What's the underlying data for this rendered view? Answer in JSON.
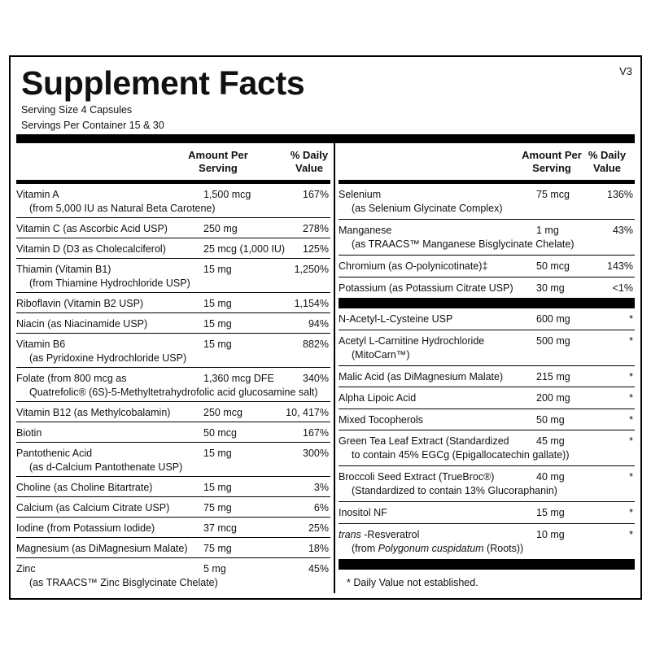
{
  "header": {
    "title": "Supplement Facts",
    "version": "V3",
    "serving_size": "Serving Size  4 Capsules",
    "servings_per_container": "Servings Per Container  15 & 30"
  },
  "columns": {
    "amount": [
      "Amount Per",
      "Serving"
    ],
    "daily_value": [
      "% Daily",
      "Value"
    ]
  },
  "left_rows": [
    {
      "name": [
        "Vitamin A",
        "(from 5,000 IU as Natural Beta Carotene)"
      ],
      "amount": "1,500 mcg",
      "dv": "167%"
    },
    {
      "name": [
        "Vitamin C (as Ascorbic Acid USP)"
      ],
      "amount": "250 mg",
      "dv": "278%"
    },
    {
      "name": [
        "Vitamin D (D3 as Cholecalciferol)"
      ],
      "amount": "25 mcg (1,000 IU)",
      "dv": "125%"
    },
    {
      "name": [
        "Thiamin (Vitamin B1)",
        "(from Thiamine Hydrochloride USP)"
      ],
      "amount": "15 mg",
      "dv": "1,250%"
    },
    {
      "name": [
        "Riboflavin (Vitamin B2 USP)"
      ],
      "amount": "15 mg",
      "dv": "1,154%"
    },
    {
      "name": [
        "Niacin (as Niacinamide USP)"
      ],
      "amount": "15 mg",
      "dv": "94%"
    },
    {
      "name": [
        "Vitamin B6",
        "(as Pyridoxine Hydrochloride USP)"
      ],
      "amount": "15 mg",
      "dv": "882%"
    },
    {
      "name": [
        "Folate (from 800 mcg as",
        "Quatrefolic® (6S)-5-Methyltetrahydrofolic acid glucosamine salt)"
      ],
      "amount": "1,360 mcg DFE",
      "dv": "340%"
    },
    {
      "name": [
        "Vitamin B12 (as Methylcobalamin)"
      ],
      "amount": "250 mcg",
      "dv": "10, 417%"
    },
    {
      "name": [
        "Biotin"
      ],
      "amount": "50 mcg",
      "dv": "167%"
    },
    {
      "name": [
        "Pantothenic Acid",
        "(as d-Calcium Pantothenate USP)"
      ],
      "amount": "15 mg",
      "dv": "300%"
    },
    {
      "name": [
        "Choline (as Choline Bitartrate)"
      ],
      "amount": "15 mg",
      "dv": "3%"
    },
    {
      "name": [
        "Calcium (as Calcium Citrate USP)"
      ],
      "amount": "75 mg",
      "dv": "6%"
    },
    {
      "name": [
        "Iodine (from Potassium Iodide)"
      ],
      "amount": "37 mcg",
      "dv": "25%"
    },
    {
      "name": [
        "Magnesium (as DiMagnesium Malate)"
      ],
      "amount": "75 mg",
      "dv": "18%"
    },
    {
      "name": [
        "Zinc",
        "(as TRAACS™ Zinc Bisglycinate Chelate)"
      ],
      "amount": "5 mg",
      "dv": "45%"
    }
  ],
  "right_sections": [
    [
      {
        "name": [
          "Selenium",
          "(as Selenium Glycinate Complex)"
        ],
        "amount": "75 mcg",
        "dv": "136%"
      },
      {
        "name": [
          "Manganese",
          "(as TRAACS™ Manganese Bisglycinate Chelate)"
        ],
        "amount": "1 mg",
        "dv": "43%"
      },
      {
        "name": [
          "Chromium (as O-polynicotinate)‡"
        ],
        "amount": "50 mcg",
        "dv": "143%"
      },
      {
        "name": [
          "Potassium (as Potassium Citrate USP)"
        ],
        "amount": "30 mg",
        "dv": "<1%"
      }
    ],
    [
      {
        "name": [
          "N-Acetyl-L-Cysteine USP"
        ],
        "amount": "600 mg",
        "dv": "*"
      },
      {
        "name": [
          "Acetyl L-Carnitine Hydrochloride",
          "(MitoCarn™)"
        ],
        "amount": "500 mg",
        "dv": "*"
      },
      {
        "name": [
          "Malic Acid (as DiMagnesium Malate)"
        ],
        "amount": "215 mg",
        "dv": "*"
      },
      {
        "name": [
          "Alpha Lipoic Acid"
        ],
        "amount": "200 mg",
        "dv": "*"
      },
      {
        "name": [
          "Mixed Tocopherols"
        ],
        "amount": "50 mg",
        "dv": "*"
      },
      {
        "name": [
          "Green Tea Leaf Extract (Standardized",
          "to contain 45% EGCg (Epigallocatechin gallate))"
        ],
        "amount": "45 mg",
        "dv": "*"
      },
      {
        "name": [
          "Broccoli Seed Extract (TrueBroc®)",
          "(Standardized to contain 13% Glucoraphanin)"
        ],
        "amount": "40 mg",
        "dv": "*"
      },
      {
        "name": [
          "Inositol NF"
        ],
        "amount": "15 mg",
        "dv": "*"
      },
      {
        "name": [
          [
            {
              "text": "trans",
              "italic": true
            },
            {
              "text": " -Resveratrol"
            }
          ],
          [
            {
              "text": "(from "
            },
            {
              "text": "Polygonum cuspidatum",
              "italic": true
            },
            {
              "text": " (Roots))"
            }
          ]
        ],
        "amount": "10 mg",
        "dv": "*"
      }
    ]
  ],
  "footnote": "* Daily Value not established."
}
